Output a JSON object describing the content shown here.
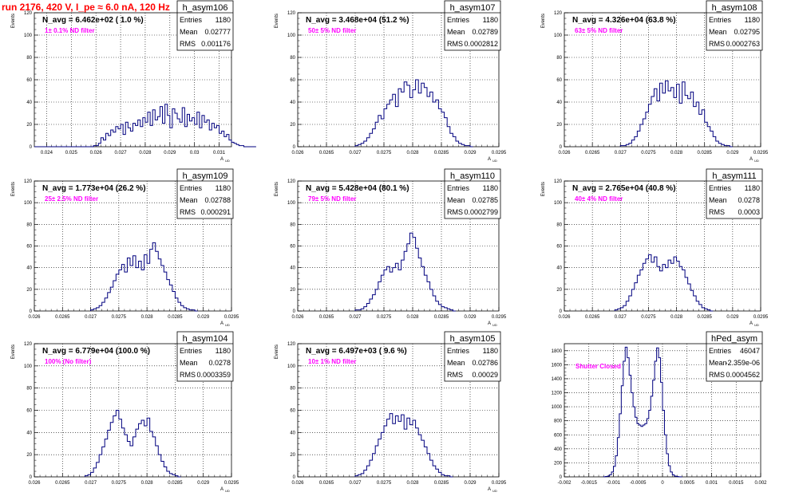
{
  "page": {
    "run_title": "run 2176,   420 V, I_pe ≈ 6.0 nA, 120 Hz"
  },
  "colors": {
    "histogram_line": "#00007f",
    "filter_label": "#ff00ff",
    "run_title": "#ff0000",
    "grid": "#000000"
  },
  "chart_data": [
    {
      "type": "histogram",
      "name": "h_asym106",
      "headline": "N_avg = 6.462e+02 ( 1.0 %)",
      "filter_label": "1± 0.1% ND filter",
      "ylabel": "Events",
      "xlabel": "A",
      "xlabel_sub": "UD",
      "stats": {
        "Entries": "1180",
        "Mean": "0.02777",
        "RMS": "0.001176"
      },
      "xlim": [
        0.0235,
        0.0315
      ],
      "ylim": [
        0,
        120
      ],
      "xticks": [
        "0.024",
        "0.025",
        "0.026",
        "0.027",
        "0.028",
        "0.029",
        "0.03",
        "0.031"
      ],
      "xtick_values": [
        0.024,
        0.025,
        0.026,
        0.027,
        0.028,
        0.029,
        0.03,
        0.031
      ],
      "yticks": [
        "0",
        "20",
        "40",
        "60",
        "80",
        "100",
        "120"
      ],
      "ytick_values": [
        0,
        20,
        40,
        60,
        80,
        100,
        120
      ],
      "grid": true,
      "bins_x0": 0.0235,
      "bins_dx": 0.0001,
      "values": [
        0,
        0,
        0,
        0,
        0,
        0,
        0,
        0,
        0,
        0,
        0,
        0,
        0,
        0,
        0,
        0,
        0,
        0,
        0,
        0,
        0,
        0,
        0,
        0,
        1,
        1,
        3,
        8,
        6,
        12,
        10,
        15,
        13,
        18,
        16,
        20,
        11,
        22,
        17,
        14,
        21,
        19,
        24,
        18,
        26,
        22,
        31,
        19,
        33,
        24,
        27,
        36,
        21,
        38,
        28,
        17,
        34,
        30,
        25,
        22,
        35,
        18,
        29,
        23,
        26,
        20,
        31,
        17,
        28,
        22,
        24,
        15,
        21,
        17,
        19,
        12,
        14,
        9,
        11,
        6,
        4,
        3,
        2,
        1,
        1,
        0,
        0,
        0,
        0,
        0
      ]
    },
    {
      "type": "histogram",
      "name": "h_asym107",
      "headline": "N_avg = 3.468e+04 (51.2 %)",
      "filter_label": "50± 5% ND filter",
      "ylabel": "Events",
      "xlabel": "A",
      "xlabel_sub": "UD",
      "stats": {
        "Entries": "1180",
        "Mean": "0.02789",
        "RMS": "0.0002812"
      },
      "xlim": [
        0.026,
        0.0295
      ],
      "ylim": [
        0,
        120
      ],
      "xticks": [
        "0.026",
        "0.0265",
        "0.027",
        "0.0275",
        "0.028",
        "0.0285",
        "0.029",
        "0.0295"
      ],
      "xtick_values": [
        0.026,
        0.0265,
        0.027,
        0.0275,
        0.028,
        0.0285,
        0.029,
        0.0295
      ],
      "yticks": [
        "0",
        "20",
        "40",
        "60",
        "80",
        "100",
        "120"
      ],
      "ytick_values": [
        0,
        20,
        40,
        60,
        80,
        100,
        120
      ],
      "grid": true,
      "bins_x0": 0.027,
      "bins_dx": 5e-05,
      "values": [
        1,
        2,
        3,
        5,
        8,
        12,
        16,
        22,
        28,
        25,
        34,
        38,
        42,
        47,
        36,
        52,
        49,
        58,
        55,
        44,
        51,
        60,
        48,
        57,
        53,
        45,
        49,
        40,
        42,
        34,
        31,
        26,
        18,
        12,
        9,
        5,
        3,
        2,
        1,
        1,
        0
      ]
    },
    {
      "type": "histogram",
      "name": "h_asym108",
      "headline": "N_avg = 4.326e+04 (63.8 %)",
      "filter_label": "63± 5% ND filter",
      "ylabel": "Events",
      "xlabel": "A",
      "xlabel_sub": "UD",
      "stats": {
        "Entries": "1180",
        "Mean": "0.02795",
        "RMS": "0.0002763"
      },
      "xlim": [
        0.026,
        0.0295
      ],
      "ylim": [
        0,
        120
      ],
      "xticks": [
        "0.026",
        "0.0265",
        "0.027",
        "0.0275",
        "0.028",
        "0.0285",
        "0.029",
        "0.0295"
      ],
      "xtick_values": [
        0.026,
        0.0265,
        0.027,
        0.0275,
        0.028,
        0.0285,
        0.029,
        0.0295
      ],
      "yticks": [
        "0",
        "20",
        "40",
        "60",
        "80",
        "100",
        "120"
      ],
      "ytick_values": [
        0,
        20,
        40,
        60,
        80,
        100,
        120
      ],
      "grid": true,
      "bins_x0": 0.027,
      "bins_dx": 5e-05,
      "values": [
        1,
        1,
        2,
        3,
        6,
        9,
        14,
        20,
        25,
        31,
        38,
        45,
        52,
        41,
        57,
        48,
        59,
        50,
        53,
        44,
        56,
        39,
        58,
        46,
        43,
        49,
        36,
        40,
        29,
        33,
        22,
        18,
        14,
        9,
        5,
        3,
        2,
        1,
        1,
        0
      ]
    },
    {
      "type": "histogram",
      "name": "h_asym109",
      "headline": "N_avg = 1.773e+04 (26.2 %)",
      "filter_label": "25± 2.5% ND filter",
      "ylabel": "Events",
      "xlabel": "A",
      "xlabel_sub": "UD",
      "stats": {
        "Entries": "1180",
        "Mean": "0.02788",
        "RMS": "0.000291"
      },
      "xlim": [
        0.026,
        0.0295
      ],
      "ylim": [
        0,
        120
      ],
      "xticks": [
        "0.026",
        "0.0265",
        "0.027",
        "0.0275",
        "0.028",
        "0.0285",
        "0.029",
        "0.0295"
      ],
      "xtick_values": [
        0.026,
        0.0265,
        0.027,
        0.0275,
        0.028,
        0.0285,
        0.029,
        0.0295
      ],
      "yticks": [
        "0",
        "20",
        "40",
        "60",
        "80",
        "100",
        "120"
      ],
      "ytick_values": [
        0,
        20,
        40,
        60,
        80,
        100,
        120
      ],
      "grid": true,
      "bins_x0": 0.027,
      "bins_dx": 5e-05,
      "values": [
        1,
        2,
        3,
        5,
        8,
        12,
        17,
        22,
        28,
        34,
        38,
        43,
        36,
        49,
        42,
        51,
        40,
        46,
        38,
        52,
        44,
        57,
        63,
        55,
        48,
        42,
        36,
        29,
        24,
        18,
        12,
        8,
        5,
        3,
        2,
        1,
        1,
        0
      ]
    },
    {
      "type": "histogram",
      "name": "h_asym110",
      "headline": "N_avg = 5.428e+04 (80.1 %)",
      "filter_label": "79± 5% ND filter",
      "ylabel": "Events",
      "xlabel": "A",
      "xlabel_sub": "UD",
      "stats": {
        "Entries": "1180",
        "Mean": "0.02785",
        "RMS": "0.0002799"
      },
      "xlim": [
        0.026,
        0.0295
      ],
      "ylim": [
        0,
        120
      ],
      "xticks": [
        "0.026",
        "0.0265",
        "0.027",
        "0.0275",
        "0.028",
        "0.0285",
        "0.029",
        "0.0295"
      ],
      "xtick_values": [
        0.026,
        0.0265,
        0.027,
        0.0275,
        0.028,
        0.0285,
        0.029,
        0.0295
      ],
      "yticks": [
        "0",
        "20",
        "40",
        "60",
        "80",
        "100",
        "120"
      ],
      "ytick_values": [
        0,
        20,
        40,
        60,
        80,
        100,
        120
      ],
      "grid": true,
      "bins_x0": 0.027,
      "bins_dx": 5e-05,
      "values": [
        1,
        1,
        2,
        4,
        7,
        11,
        15,
        20,
        27,
        33,
        38,
        41,
        36,
        40,
        44,
        38,
        47,
        55,
        62,
        72,
        68,
        58,
        49,
        41,
        33,
        27,
        20,
        14,
        9,
        6,
        4,
        3,
        2,
        1,
        0
      ]
    },
    {
      "type": "histogram",
      "name": "h_asym111",
      "headline": "N_avg = 2.765e+04 (40.8 %)",
      "filter_label": "40± 4% ND filter",
      "ylabel": "Events",
      "xlabel": "A",
      "xlabel_sub": "UD",
      "stats": {
        "Entries": "1180",
        "Mean": "0.0278",
        "RMS": "0.0003"
      },
      "xlim": [
        0.026,
        0.0295
      ],
      "ylim": [
        0,
        120
      ],
      "xticks": [
        "0.026",
        "0.0265",
        "0.027",
        "0.0275",
        "0.028",
        "0.0285",
        "0.029",
        "0.0295"
      ],
      "xtick_values": [
        0.026,
        0.0265,
        0.027,
        0.0275,
        0.028,
        0.0285,
        0.029,
        0.0295
      ],
      "yticks": [
        "0",
        "20",
        "40",
        "60",
        "80",
        "100",
        "120"
      ],
      "ytick_values": [
        0,
        20,
        40,
        60,
        80,
        100,
        120
      ],
      "grid": true,
      "bins_x0": 0.0269,
      "bins_dx": 5e-05,
      "values": [
        1,
        2,
        3,
        5,
        9,
        14,
        20,
        26,
        33,
        38,
        44,
        48,
        52,
        45,
        50,
        41,
        37,
        43,
        40,
        47,
        44,
        50,
        46,
        41,
        38,
        31,
        25,
        19,
        14,
        9,
        6,
        3,
        2,
        1,
        0
      ]
    },
    {
      "type": "histogram",
      "name": "h_asym104",
      "headline": "N_avg = 6.779e+04 (100.0 %)",
      "filter_label": "100% (No filter)",
      "ylabel": "Events",
      "xlabel": "A",
      "xlabel_sub": "UD",
      "stats": {
        "Entries": "1180",
        "Mean": "0.0278",
        "RMS": "0.0003359"
      },
      "xlim": [
        0.026,
        0.0295
      ],
      "ylim": [
        0,
        120
      ],
      "xticks": [
        "0.026",
        "0.0265",
        "0.027",
        "0.0275",
        "0.028",
        "0.0285",
        "0.029",
        "0.0295"
      ],
      "xtick_values": [
        0.026,
        0.0265,
        0.027,
        0.0275,
        0.028,
        0.0285,
        0.029,
        0.0295
      ],
      "yticks": [
        "0",
        "20",
        "40",
        "60",
        "80",
        "100",
        "120"
      ],
      "ytick_values": [
        0,
        20,
        40,
        60,
        80,
        100,
        120
      ],
      "grid": true,
      "bins_x0": 0.0269,
      "bins_dx": 5e-05,
      "values": [
        1,
        2,
        4,
        8,
        13,
        20,
        27,
        34,
        42,
        49,
        55,
        60,
        52,
        44,
        38,
        32,
        28,
        36,
        43,
        48,
        51,
        46,
        53,
        41,
        36,
        28,
        20,
        14,
        9,
        5,
        3,
        2,
        1,
        0
      ]
    },
    {
      "type": "histogram",
      "name": "h_asym105",
      "headline": "N_avg = 6.497e+03 ( 9.6 %)",
      "filter_label": "10± 1% ND filter",
      "ylabel": "Events",
      "xlabel": "A",
      "xlabel_sub": "UD",
      "stats": {
        "Entries": "1180",
        "Mean": "0.02786",
        "RMS": "0.00029"
      },
      "xlim": [
        0.026,
        0.0295
      ],
      "ylim": [
        0,
        120
      ],
      "xticks": [
        "0.026",
        "0.0265",
        "0.027",
        "0.0275",
        "0.028",
        "0.0285",
        "0.029",
        "0.0295"
      ],
      "xtick_values": [
        0.026,
        0.0265,
        0.027,
        0.0275,
        0.028,
        0.0285,
        0.029,
        0.0295
      ],
      "yticks": [
        "0",
        "20",
        "40",
        "60",
        "80",
        "100",
        "120"
      ],
      "ytick_values": [
        0,
        20,
        40,
        60,
        80,
        100,
        120
      ],
      "grid": true,
      "bins_x0": 0.027,
      "bins_dx": 5e-05,
      "values": [
        1,
        2,
        3,
        6,
        10,
        15,
        21,
        28,
        34,
        40,
        46,
        52,
        57,
        48,
        55,
        50,
        56,
        43,
        53,
        47,
        51,
        44,
        38,
        33,
        27,
        21,
        15,
        10,
        7,
        4,
        2,
        1,
        1,
        0
      ]
    },
    {
      "type": "histogram",
      "name": "hPed_asym",
      "headline": "",
      "filter_label": "Shutter Closed",
      "ylabel": "",
      "xlabel": "",
      "xlabel_sub": "",
      "stats": {
        "Entries": "46047",
        "Mean": "-2.359e-06",
        "RMS": "0.0004562"
      },
      "xlim": [
        -0.002,
        0.002
      ],
      "ylim": [
        0,
        1900
      ],
      "xticks": [
        "-0.002",
        "-0.0015",
        "-0.001",
        "-0.0005",
        "0",
        "0.0005",
        "0.001",
        "0.0015",
        "0.002"
      ],
      "xtick_values": [
        -0.002,
        -0.0015,
        -0.001,
        -0.0005,
        0,
        0.0005,
        0.001,
        0.0015,
        0.002
      ],
      "yticks": [
        "0",
        "200",
        "400",
        "600",
        "800",
        "1000",
        "1200",
        "1400",
        "1600",
        "1800"
      ],
      "ytick_values": [
        0,
        200,
        400,
        600,
        800,
        1000,
        1200,
        1400,
        1600,
        1800
      ],
      "grid": true,
      "bins_x0": -0.0012,
      "bins_dx": 4e-05,
      "values": [
        2,
        5,
        12,
        30,
        70,
        150,
        300,
        560,
        900,
        1300,
        1650,
        1850,
        1700,
        1450,
        1200,
        1000,
        850,
        760,
        740,
        720,
        740,
        760,
        830,
        950,
        1150,
        1380,
        1650,
        1840,
        1700,
        1350,
        950,
        600,
        330,
        160,
        70,
        30,
        12,
        5,
        2,
        0
      ]
    }
  ]
}
